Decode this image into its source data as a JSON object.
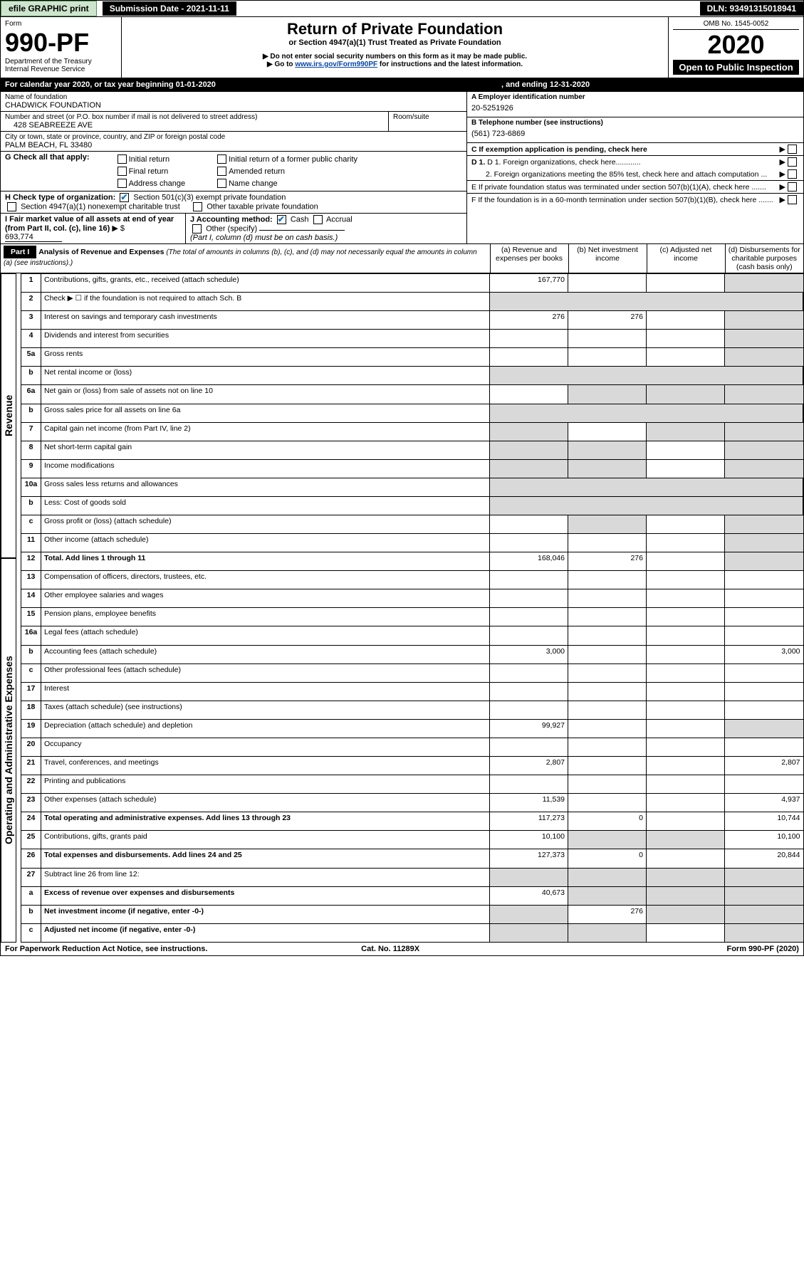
{
  "topbar": {
    "efile": "efile GRAPHIC print",
    "sub": "Submission Date - 2021-11-11",
    "dln": "DLN: 93491315018941"
  },
  "header": {
    "form": "Form",
    "formno": "990-PF",
    "dept": "Department of the Treasury",
    "irs": "Internal Revenue Service",
    "title": "Return of Private Foundation",
    "subtitle": "or Section 4947(a)(1) Trust Treated as Private Foundation",
    "warn1": "▶ Do not enter social security numbers on this form as it may be made public.",
    "warn2_pre": "▶ Go to ",
    "warn2_link": "www.irs.gov/Form990PF",
    "warn2_post": " for instructions and the latest information.",
    "omb": "OMB No. 1545-0052",
    "year": "2020",
    "open": "Open to Public Inspection"
  },
  "cal": {
    "lbl": "For calendar year 2020, or tax year beginning 01-01-2020",
    "end": ", and ending 12-31-2020"
  },
  "idblock": {
    "name_lbl": "Name of foundation",
    "name": "CHADWICK FOUNDATION",
    "addr_lbl": "Number and street (or P.O. box number if mail is not delivered to street address)",
    "addr": "428 SEABREEZE AVE",
    "room_lbl": "Room/suite",
    "city_lbl": "City or town, state or province, country, and ZIP or foreign postal code",
    "city": "PALM BEACH, FL  33480",
    "a_lbl": "A Employer identification number",
    "a_val": "20-5251926",
    "b_lbl": "B Telephone number (see instructions)",
    "b_val": "(561) 723-6869",
    "c_lbl": "C If exemption application is pending, check here",
    "d1_lbl": "D 1. Foreign organizations, check here............",
    "d2_lbl": "2. Foreign organizations meeting the 85% test, check here and attach computation ...",
    "e_lbl": "E  If private foundation status was terminated under section 507(b)(1)(A), check here .......",
    "f_lbl": "F  If the foundation is in a 60-month termination under section 507(b)(1)(B), check here ......."
  },
  "g": {
    "lbl": "G Check all that apply:",
    "opts": [
      "Initial return",
      "Final return",
      "Address change",
      "Initial return of a former public charity",
      "Amended return",
      "Name change"
    ]
  },
  "h": {
    "lbl": "H Check type of organization:",
    "o1": "Section 501(c)(3) exempt private foundation",
    "o2": "Section 4947(a)(1) nonexempt charitable trust",
    "o3": "Other taxable private foundation"
  },
  "i": {
    "lbl": "I Fair market value of all assets at end of year (from Part II, col. (c), line 16)",
    "val_lbl": "▶ $",
    "val": "693,774"
  },
  "j": {
    "lbl": "J Accounting method:",
    "cash": "Cash",
    "accrual": "Accrual",
    "other": "Other (specify)",
    "note": "(Part I, column (d) must be on cash basis.)"
  },
  "part1": {
    "hdr": "Part I",
    "title": "Analysis of Revenue and Expenses",
    "title_note": "(The total of amounts in columns (b), (c), and (d) may not necessarily equal the amounts in column (a) (see instructions).)",
    "cols": {
      "a": "(a)  Revenue and expenses per books",
      "b": "(b)  Net investment income",
      "c": "(c)  Adjusted net income",
      "d": "(d)  Disbursements for charitable purposes (cash basis only)"
    }
  },
  "side": {
    "rev": "Revenue",
    "exp": "Operating and Administrative Expenses"
  },
  "rows": [
    {
      "n": "1",
      "d": "Contributions, gifts, grants, etc., received (attach schedule)",
      "a": "167,770",
      "b": "",
      "c": "",
      "dd": "",
      "grey_d": true
    },
    {
      "n": "2",
      "d": "Check ▶ ☐ if the foundation is not required to attach Sch. B",
      "greyrow": true
    },
    {
      "n": "3",
      "d": "Interest on savings and temporary cash investments",
      "a": "276",
      "b": "276",
      "c": "",
      "dd": "",
      "grey_d": true
    },
    {
      "n": "4",
      "d": "Dividends and interest from securities",
      "a": "",
      "b": "",
      "c": "",
      "dd": "",
      "grey_d": true
    },
    {
      "n": "5a",
      "d": "Gross rents",
      "a": "",
      "b": "",
      "c": "",
      "dd": "",
      "grey_d": true
    },
    {
      "n": "b",
      "d": "Net rental income or (loss)",
      "inset": true,
      "greyrow": true
    },
    {
      "n": "6a",
      "d": "Net gain or (loss) from sale of assets not on line 10",
      "a": "",
      "grey_bcd": true
    },
    {
      "n": "b",
      "d": "Gross sales price for all assets on line 6a",
      "inset": true,
      "greyrow": true
    },
    {
      "n": "7",
      "d": "Capital gain net income (from Part IV, line 2)",
      "grey_a": true,
      "b": "",
      "grey_cd": true
    },
    {
      "n": "8",
      "d": "Net short-term capital gain",
      "grey_ab": true,
      "c": "",
      "grey_d": true
    },
    {
      "n": "9",
      "d": "Income modifications",
      "grey_ab": true,
      "c": "",
      "grey_d": true
    },
    {
      "n": "10a",
      "d": "Gross sales less returns and allowances",
      "inset": true,
      "greyrow": true
    },
    {
      "n": "b",
      "d": "Less: Cost of goods sold",
      "inset": true,
      "greyrow": true
    },
    {
      "n": "c",
      "d": "Gross profit or (loss) (attach schedule)",
      "a": "",
      "grey_b": true,
      "c": "",
      "grey_d": true
    },
    {
      "n": "11",
      "d": "Other income (attach schedule)",
      "a": "",
      "b": "",
      "c": "",
      "grey_d": true
    },
    {
      "n": "12",
      "d": "Total. Add lines 1 through 11",
      "bold": true,
      "a": "168,046",
      "b": "276",
      "c": "",
      "grey_d": true
    },
    {
      "n": "13",
      "d": "Compensation of officers, directors, trustees, etc.",
      "a": "",
      "b": "",
      "c": "",
      "dd": ""
    },
    {
      "n": "14",
      "d": "Other employee salaries and wages",
      "a": "",
      "b": "",
      "c": "",
      "dd": ""
    },
    {
      "n": "15",
      "d": "Pension plans, employee benefits",
      "a": "",
      "b": "",
      "c": "",
      "dd": ""
    },
    {
      "n": "16a",
      "d": "Legal fees (attach schedule)",
      "a": "",
      "b": "",
      "c": "",
      "dd": ""
    },
    {
      "n": "b",
      "d": "Accounting fees (attach schedule)",
      "a": "3,000",
      "b": "",
      "c": "",
      "dd": "3,000"
    },
    {
      "n": "c",
      "d": "Other professional fees (attach schedule)",
      "a": "",
      "b": "",
      "c": "",
      "dd": ""
    },
    {
      "n": "17",
      "d": "Interest",
      "a": "",
      "b": "",
      "c": "",
      "dd": ""
    },
    {
      "n": "18",
      "d": "Taxes (attach schedule) (see instructions)",
      "a": "",
      "b": "",
      "c": "",
      "dd": ""
    },
    {
      "n": "19",
      "d": "Depreciation (attach schedule) and depletion",
      "a": "99,927",
      "b": "",
      "c": "",
      "grey_d": true
    },
    {
      "n": "20",
      "d": "Occupancy",
      "a": "",
      "b": "",
      "c": "",
      "dd": ""
    },
    {
      "n": "21",
      "d": "Travel, conferences, and meetings",
      "a": "2,807",
      "b": "",
      "c": "",
      "dd": "2,807"
    },
    {
      "n": "22",
      "d": "Printing and publications",
      "a": "",
      "b": "",
      "c": "",
      "dd": ""
    },
    {
      "n": "23",
      "d": "Other expenses (attach schedule)",
      "a": "11,539",
      "b": "",
      "c": "",
      "dd": "4,937"
    },
    {
      "n": "24",
      "d": "Total operating and administrative expenses. Add lines 13 through 23",
      "bold": true,
      "a": "117,273",
      "b": "0",
      "c": "",
      "dd": "10,744"
    },
    {
      "n": "25",
      "d": "Contributions, gifts, grants paid",
      "a": "10,100",
      "grey_bc": true,
      "dd": "10,100"
    },
    {
      "n": "26",
      "d": "Total expenses and disbursements. Add lines 24 and 25",
      "bold": true,
      "a": "127,373",
      "b": "0",
      "c": "",
      "dd": "20,844"
    },
    {
      "n": "27",
      "d": "Subtract line 26 from line 12:",
      "grey_abcd": true
    },
    {
      "n": "a",
      "d": "Excess of revenue over expenses and disbursements",
      "bold": true,
      "a": "40,673",
      "grey_bcd": true
    },
    {
      "n": "b",
      "d": "Net investment income (if negative, enter -0-)",
      "bold": true,
      "grey_a": true,
      "b": "276",
      "grey_cd": true
    },
    {
      "n": "c",
      "d": "Adjusted net income (if negative, enter -0-)",
      "bold": true,
      "grey_ab": true,
      "c": "",
      "grey_d": true
    }
  ],
  "foot": {
    "l": "For Paperwork Reduction Act Notice, see instructions.",
    "c": "Cat. No. 11289X",
    "r": "Form 990-PF (2020)"
  },
  "colors": {
    "link": "#0645ad",
    "grey": "#d9d9d9",
    "green_btn": "#cde5cd",
    "blue_check": "#1a75bc"
  }
}
